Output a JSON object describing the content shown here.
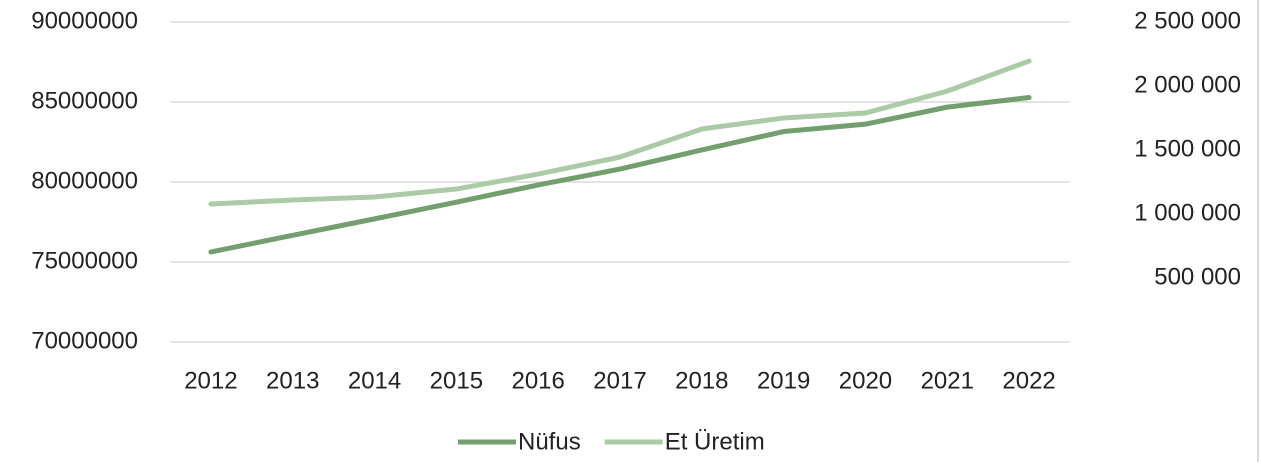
{
  "chart_data": {
    "type": "line",
    "categories": [
      "2012",
      "2013",
      "2014",
      "2015",
      "2016",
      "2017",
      "2018",
      "2019",
      "2020",
      "2021",
      "2022"
    ],
    "series": [
      {
        "name": "Nüfus",
        "color": "#739f6f",
        "values": [
          75627384,
          76667864,
          77695904,
          78741053,
          79814871,
          80810525,
          82003882,
          83154997,
          83614362,
          84680273,
          85279553
        ]
      },
      {
        "name": "Et Üretim",
        "color": "#abcaa6",
        "axis": "y2",
        "values": [
          1078000,
          1109000,
          1133000,
          1195000,
          1312000,
          1445000,
          1664000,
          1750000,
          1789000,
          1960000,
          2195000
        ]
      }
    ],
    "ylim": [
      70000000,
      90000000
    ],
    "yticks": [
      70000000,
      75000000,
      80000000,
      85000000,
      90000000
    ],
    "y2lim": [
      0,
      2500000
    ],
    "y2ticks": [
      {
        "value": 500000,
        "label": "500 000"
      },
      {
        "value": 1000000,
        "label": "1 000 000"
      },
      {
        "value": 1500000,
        "label": "1 500 000"
      },
      {
        "value": 2000000,
        "label": "2 000 000"
      },
      {
        "value": 2500000,
        "label": "2 500 000"
      }
    ],
    "grid": true,
    "legend": "bottom"
  }
}
